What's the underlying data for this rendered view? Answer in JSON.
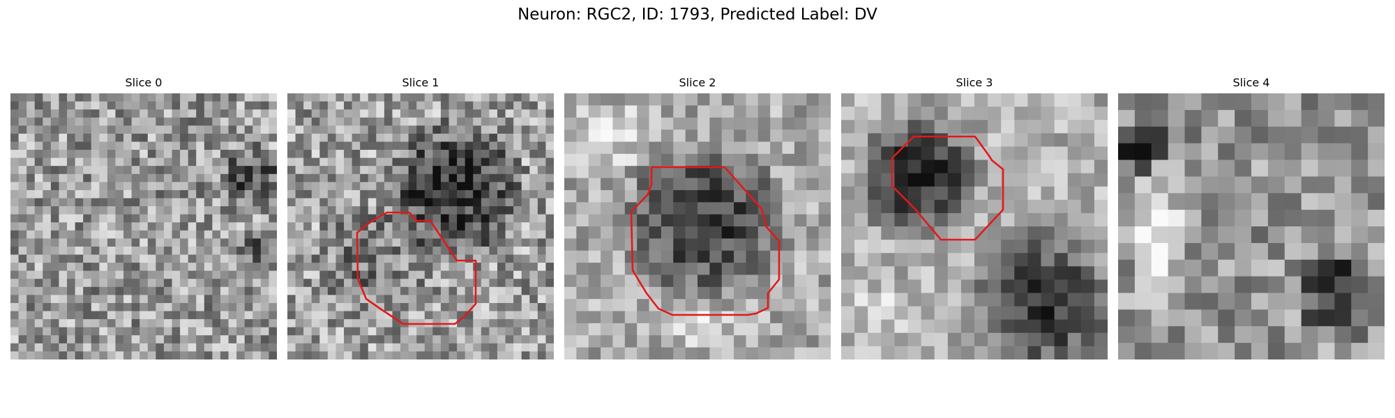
{
  "figure": {
    "title": "Neuron: RGC2, ID: 1793, Predicted Label: DV"
  },
  "colors": {
    "background": "#ffffff",
    "outline": "#e3181b",
    "colormap": "gray"
  },
  "panels": [
    {
      "title": "Slice 0",
      "has_outline": false
    },
    {
      "title": "Slice 1",
      "has_outline": true
    },
    {
      "title": "Slice 2",
      "has_outline": true
    },
    {
      "title": "Slice 3",
      "has_outline": true
    },
    {
      "title": "Slice 4",
      "has_outline": false
    }
  ]
}
